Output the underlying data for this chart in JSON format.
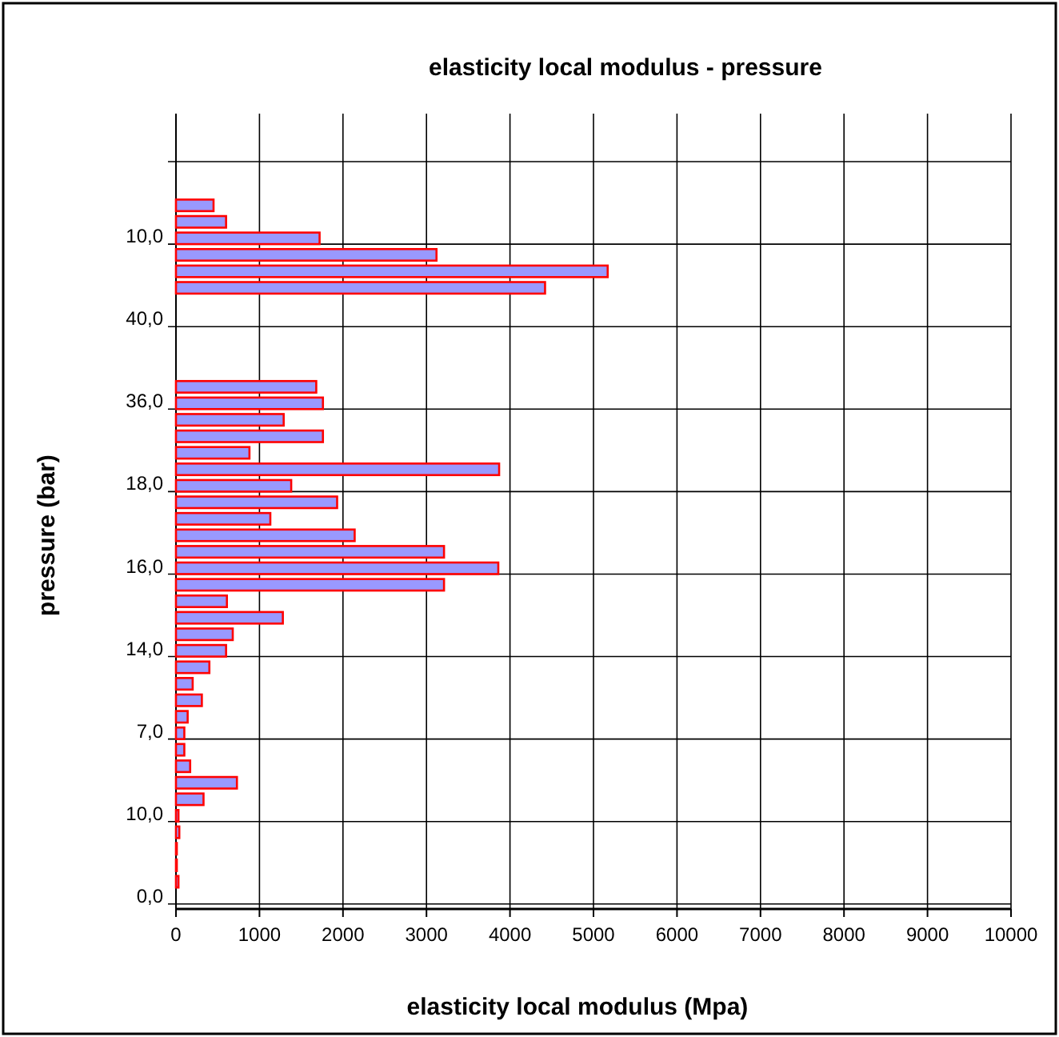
{
  "chart_data": {
    "type": "bar",
    "orientation": "horizontal",
    "title": "elasticity local modulus - pressure",
    "xlabel": "elasticity local modulus (Mpa)",
    "ylabel": "pressure (bar)",
    "categories": [
      null,
      null,
      null,
      null,
      "10,0",
      null,
      null,
      null,
      null,
      "40,0",
      null,
      null,
      null,
      null,
      "36,0",
      null,
      null,
      null,
      null,
      "18,0",
      null,
      null,
      null,
      null,
      "16,0",
      null,
      null,
      null,
      null,
      "14,0",
      null,
      null,
      null,
      null,
      "7,0",
      null,
      null,
      null,
      null,
      "10,0",
      null,
      null,
      null,
      null,
      "0,0"
    ],
    "series": [
      {
        "color": "#9999ff",
        "values": [
          null,
          null,
          450,
          600,
          1720,
          3120,
          5170,
          4420,
          null,
          null,
          null,
          null,
          null,
          1680,
          1760,
          1290,
          1760,
          880,
          3870,
          1380,
          1930,
          1130,
          2140,
          3210,
          3860,
          3210,
          610,
          1280,
          680,
          600,
          400,
          200,
          310,
          140,
          100,
          100,
          170,
          730,
          330,
          30,
          40,
          10,
          10,
          30,
          null
        ]
      }
    ],
    "xlim": [
      0,
      10000
    ],
    "xticks": [
      0,
      1000,
      2000,
      3000,
      4000,
      5000,
      6000,
      7000,
      8000,
      9000,
      10000
    ],
    "grid": true
  }
}
